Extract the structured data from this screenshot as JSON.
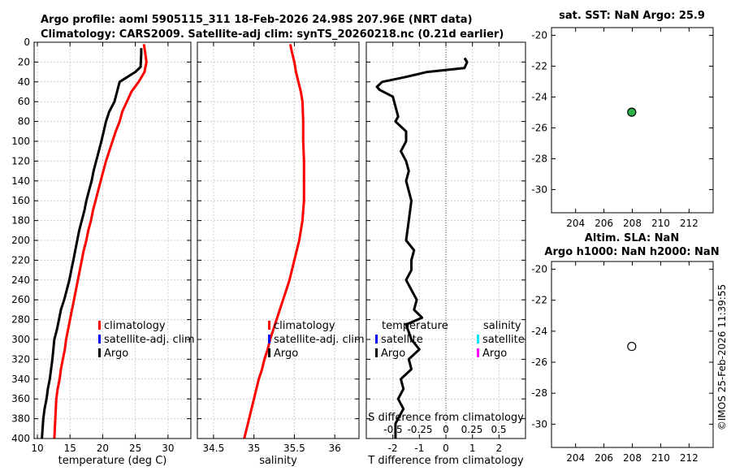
{
  "figure": {
    "title_line1": "Argo profile: aoml 5905115_311 18-Feb-2026 24.98S 207.96E (NRT data)",
    "title_line2": "Climatology: CARS2009. Satellite-adj clim: synTS_20260218.nc (0.21d earlier)",
    "credit": "©IMOS 25-Feb-2026 11:39:55"
  },
  "chart_data": [
    {
      "id": "temperature",
      "type": "line",
      "xlabel": "temperature (deg C)",
      "xlim": [
        9.5,
        33.5
      ],
      "ylim": [
        0,
        400
      ],
      "y_reversed": true,
      "xticks": [
        10,
        15,
        20,
        25,
        30
      ],
      "yticks": [
        0,
        20,
        40,
        60,
        80,
        100,
        120,
        140,
        160,
        180,
        200,
        220,
        240,
        260,
        280,
        300,
        320,
        340,
        360,
        380,
        400
      ],
      "grid": true,
      "legend": {
        "entries": [
          "climatology",
          "satellite-adj. clim",
          "Argo"
        ],
        "colors": [
          "#ff0000",
          "#0000ff",
          "#000000"
        ]
      },
      "series": [
        {
          "name": "climatology",
          "color": "#ff0000",
          "x": [
            26.3,
            26.5,
            26.7,
            26.4,
            25.5,
            24.4,
            23.7,
            23.0,
            22.6,
            22.0,
            21.5,
            21.0,
            20.5,
            20.1,
            19.7,
            19.3,
            18.9,
            18.5,
            18.2,
            17.8,
            17.5,
            17.1,
            16.8,
            16.5,
            16.2,
            15.9,
            15.6,
            15.3,
            15.0,
            14.7,
            14.4,
            14.2,
            13.9,
            13.6,
            13.4,
            13.1,
            12.9,
            12.6
          ],
          "depth": [
            2,
            10,
            20,
            30,
            40,
            50,
            60,
            70,
            80,
            90,
            100,
            110,
            120,
            130,
            140,
            150,
            160,
            170,
            180,
            190,
            200,
            210,
            220,
            230,
            240,
            250,
            260,
            270,
            280,
            290,
            300,
            310,
            320,
            330,
            340,
            350,
            360,
            400
          ]
        },
        {
          "name": "Argo",
          "color": "#000000",
          "x": [
            25.9,
            25.9,
            25.8,
            25.0,
            23.8,
            22.6,
            22.2,
            21.8,
            21.0,
            20.5,
            19.8,
            19.4,
            19.0,
            18.6,
            18.3,
            17.9,
            17.5,
            17.2,
            16.8,
            16.4,
            16.1,
            15.8,
            15.5,
            15.2,
            14.9,
            14.5,
            14.1,
            13.6,
            13.3,
            13.0,
            12.6,
            12.3,
            11.9,
            11.6,
            11.4,
            11.1,
            10.9,
            10.7
          ],
          "depth": [
            6,
            12,
            25,
            30,
            35,
            40,
            50,
            60,
            70,
            80,
            100,
            110,
            120,
            130,
            140,
            150,
            160,
            170,
            180,
            190,
            200,
            210,
            220,
            230,
            240,
            250,
            260,
            270,
            280,
            290,
            300,
            320,
            340,
            350,
            360,
            370,
            380,
            400
          ]
        }
      ]
    },
    {
      "id": "salinity",
      "type": "line",
      "xlabel": "salinity",
      "xlim": [
        34.3,
        36.3
      ],
      "ylim": [
        0,
        400
      ],
      "y_reversed": true,
      "xticks": [
        34.5,
        35,
        35.5,
        36
      ],
      "xticklabels": [
        "34.5",
        "35",
        "35.5",
        "36"
      ],
      "grid": true,
      "legend": {
        "entries": [
          "climatology",
          "satellite-adj. clim",
          "Argo"
        ],
        "colors": [
          "#ff0000",
          "#0000ff",
          "#000000"
        ]
      },
      "series": [
        {
          "name": "climatology",
          "color": "#ff0000",
          "x": [
            35.45,
            35.47,
            35.5,
            35.52,
            35.55,
            35.58,
            35.6,
            35.61,
            35.61,
            35.62,
            35.62,
            35.62,
            35.62,
            35.61,
            35.6,
            35.58,
            35.56,
            35.53,
            35.5,
            35.47,
            35.44,
            35.4,
            35.36,
            35.32,
            35.28,
            35.24,
            35.2,
            35.17,
            35.13,
            35.1,
            35.06,
            35.03,
            35.0,
            34.97,
            34.94,
            34.91,
            34.88
          ],
          "depth": [
            2,
            10,
            20,
            30,
            40,
            50,
            60,
            80,
            100,
            120,
            140,
            150,
            160,
            170,
            180,
            190,
            200,
            210,
            220,
            230,
            240,
            250,
            260,
            270,
            280,
            290,
            300,
            310,
            320,
            330,
            340,
            350,
            360,
            370,
            380,
            390,
            400
          ]
        }
      ]
    },
    {
      "id": "differences",
      "type": "line",
      "xlabel": "T difference from climatology",
      "xlabel_top": "S difference from climatology",
      "xlim": [
        -3.0,
        3.0
      ],
      "ylim": [
        0,
        400
      ],
      "y_reversed": true,
      "xticks": [
        -2,
        -1,
        0,
        1,
        2
      ],
      "xticklabels": [
        "-2",
        "-1",
        "0",
        "1",
        "2"
      ],
      "top_xticklabels": [
        "-0.5",
        "-0.25",
        "0",
        "0.25",
        "0.5"
      ],
      "grid": true,
      "zero_line": true,
      "legend_temperature": {
        "title": "temperature",
        "entries": [
          "satellite",
          "Argo"
        ],
        "colors": [
          "#0000ff",
          "#000000"
        ]
      },
      "legend_salinity": {
        "title": "salinity",
        "entries": [
          "satellite",
          "Argo"
        ],
        "colors": [
          "#00e5ff",
          "#ff00ff"
        ]
      },
      "series": [
        {
          "name": "Argo temperature difference",
          "color": "#000000",
          "x": [
            0.7,
            0.8,
            0.7,
            -0.7,
            -1.5,
            -2.4,
            -2.6,
            -2.5,
            -2.0,
            -1.9,
            -1.8,
            -1.9,
            -1.5,
            -1.5,
            -1.7,
            -1.5,
            -1.4,
            -1.5,
            -1.3,
            -1.4,
            -1.5,
            -1.2,
            -1.3,
            -1.3,
            -1.5,
            -1.3,
            -1.1,
            -1.2,
            -0.9,
            -1.5,
            -1.3,
            -1.0,
            -1.4,
            -1.3,
            -1.7,
            -1.6,
            -1.8,
            -1.6,
            -1.9,
            -1.9
          ],
          "depth": [
            16,
            20,
            26,
            30,
            35,
            40,
            45,
            48,
            55,
            65,
            75,
            80,
            90,
            100,
            110,
            120,
            130,
            140,
            160,
            180,
            200,
            210,
            220,
            230,
            240,
            250,
            260,
            270,
            278,
            285,
            300,
            310,
            320,
            330,
            340,
            350,
            360,
            370,
            385,
            400
          ]
        }
      ]
    },
    {
      "id": "sst_map",
      "type": "scatter",
      "title": "sat. SST: NaN Argo: 25.9",
      "xlim": [
        202.3,
        213.7
      ],
      "ylim": [
        -31.5,
        -19.5
      ],
      "xticks": [
        204,
        206,
        208,
        210,
        212
      ],
      "yticks": [
        -20,
        -22,
        -24,
        -26,
        -28,
        -30
      ],
      "points": [
        {
          "x": 207.96,
          "y": -24.98,
          "color": "#2cb34a"
        }
      ]
    },
    {
      "id": "sla_map",
      "type": "scatter",
      "title_line1": "Altim. SLA: NaN",
      "title_line2": "Argo h1000: NaN h2000: NaN",
      "xlim": [
        202.3,
        213.7
      ],
      "ylim": [
        -31.5,
        -19.5
      ],
      "xticks": [
        204,
        206,
        208,
        210,
        212
      ],
      "yticks": [
        -20,
        -22,
        -24,
        -26,
        -28,
        -30
      ],
      "points": [
        {
          "x": 207.96,
          "y": -24.98,
          "color": "#ffffff"
        }
      ]
    }
  ]
}
